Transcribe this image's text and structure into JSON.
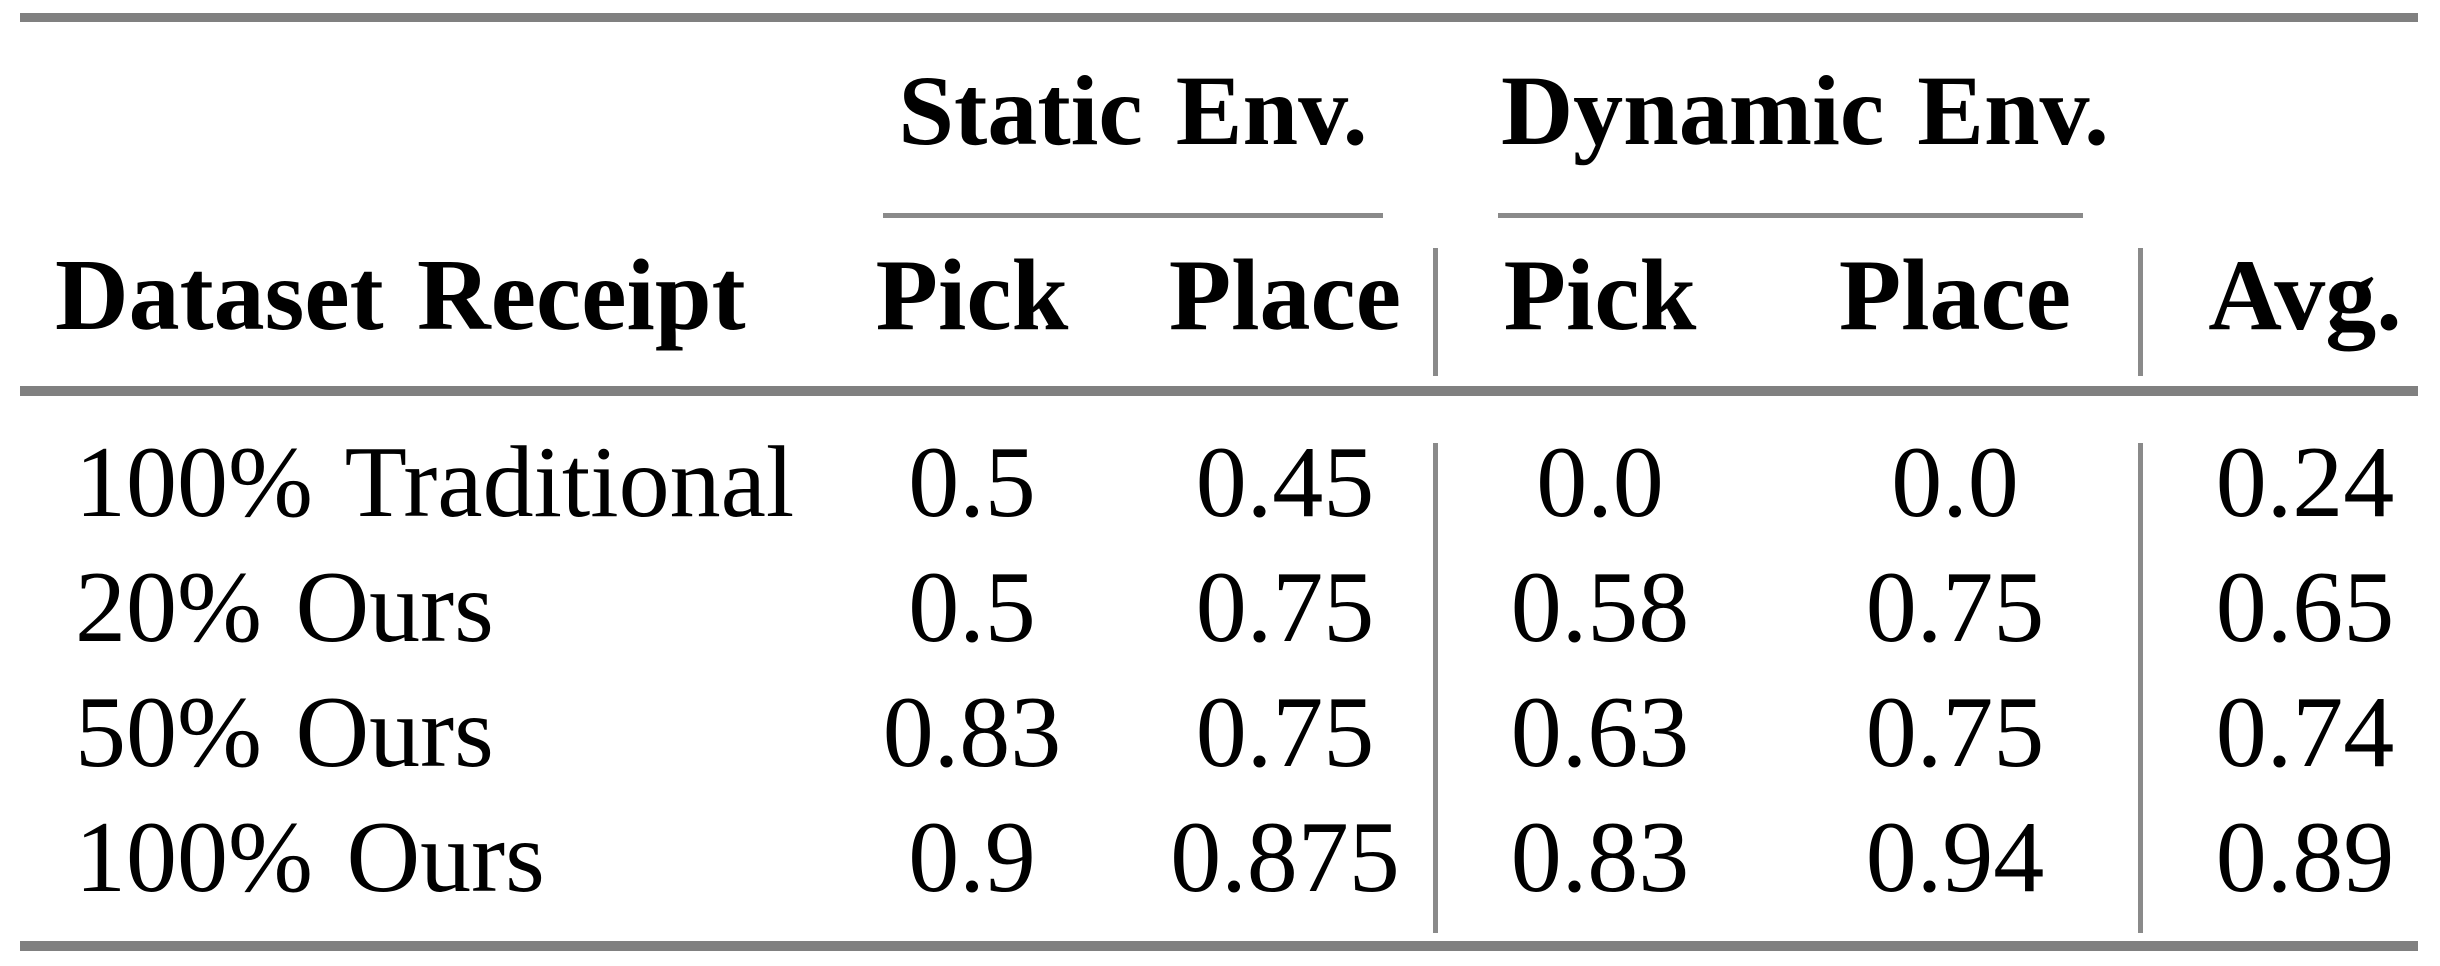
{
  "table": {
    "row_label_header": "Dataset Receipt",
    "groups": [
      {
        "label": "Static Env.",
        "columns": [
          "Pick",
          "Place"
        ]
      },
      {
        "label": "Dynamic Env.",
        "columns": [
          "Pick",
          "Place"
        ]
      }
    ],
    "avg_header": "Avg.",
    "rows": [
      {
        "label": "100% Traditional",
        "static_pick": "0.5",
        "static_place": "0.45",
        "dynamic_pick": "0.0",
        "dynamic_place": "0.0",
        "avg": "0.24"
      },
      {
        "label": "20% Ours",
        "static_pick": "0.5",
        "static_place": "0.75",
        "dynamic_pick": "0.58",
        "dynamic_place": "0.75",
        "avg": "0.65"
      },
      {
        "label": "50% Ours",
        "static_pick": "0.83",
        "static_place": "0.75",
        "dynamic_pick": "0.63",
        "dynamic_place": "0.75",
        "avg": "0.74"
      },
      {
        "label": "100% Ours",
        "static_pick": "0.9",
        "static_place": "0.875",
        "dynamic_pick": "0.83",
        "dynamic_place": "0.94",
        "avg": "0.89"
      }
    ],
    "colors": {
      "rule": "#808080",
      "thin_line": "#8a8a8a",
      "text": "#000000",
      "background": "#ffffff"
    }
  }
}
